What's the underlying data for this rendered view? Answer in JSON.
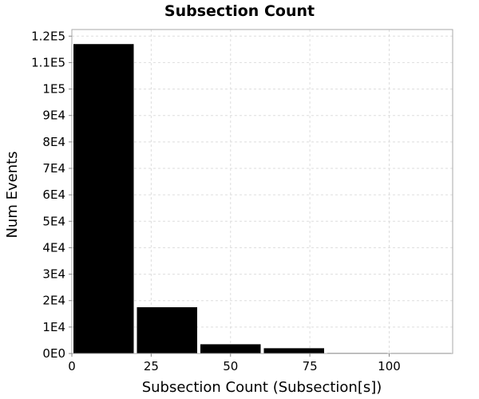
{
  "chart_data": {
    "type": "bar",
    "title": "Subsection Count",
    "xlabel": "Subsection Count (Subsection[s])",
    "ylabel": "Num Events",
    "xlim": [
      0,
      120
    ],
    "ylim": [
      0,
      122500
    ],
    "x_ticks": [
      {
        "value": 0,
        "label": "0"
      },
      {
        "value": 25,
        "label": "25"
      },
      {
        "value": 50,
        "label": "50"
      },
      {
        "value": 75,
        "label": "75"
      },
      {
        "value": 100,
        "label": "100"
      }
    ],
    "y_ticks": [
      {
        "value": 0,
        "label": "0E0"
      },
      {
        "value": 10000,
        "label": "1E4"
      },
      {
        "value": 20000,
        "label": "2E4"
      },
      {
        "value": 30000,
        "label": "3E4"
      },
      {
        "value": 40000,
        "label": "4E4"
      },
      {
        "value": 50000,
        "label": "5E4"
      },
      {
        "value": 60000,
        "label": "6E4"
      },
      {
        "value": 70000,
        "label": "7E4"
      },
      {
        "value": 80000,
        "label": "8E4"
      },
      {
        "value": 90000,
        "label": "9E4"
      },
      {
        "value": 100000,
        "label": "1E5"
      },
      {
        "value": 110000,
        "label": "1.1E5"
      },
      {
        "value": 120000,
        "label": "1.2E5"
      }
    ],
    "bins": [
      {
        "x0": 0,
        "x1": 20,
        "value": 117000
      },
      {
        "x0": 20,
        "x1": 40,
        "value": 17500
      },
      {
        "x0": 40,
        "x1": 60,
        "value": 3500
      },
      {
        "x0": 60,
        "x1": 80,
        "value": 2000
      },
      {
        "x0": 80,
        "x1": 100,
        "value": 200
      },
      {
        "x0": 100,
        "x1": 120,
        "value": 30
      }
    ],
    "grid": true,
    "colors": {
      "bar": "#000000",
      "grid": "#dddddd",
      "frame": "#aaaaaa",
      "background": "#ffffff"
    }
  }
}
